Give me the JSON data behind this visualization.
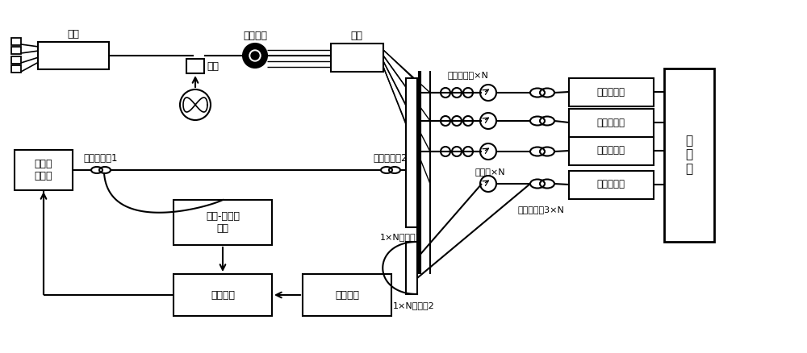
{
  "bg": "#ffffff",
  "lc": "#000000",
  "fig_w": 10.0,
  "fig_h": 4.38,
  "dpi": 100,
  "labels": {
    "output": "输出",
    "input": "输入",
    "multi_fiber": "多芯光纤",
    "vibration": "振动",
    "pm_coupler1": "保偏耦合器1",
    "pm_coupler2": "保偏耦合器2",
    "pm_coupler3": "保偏耦合器3×N",
    "tunable_laser": "可调谐\n激光器",
    "mz": "马赫-曾德干\n涉仪",
    "pll": "光锁相环",
    "sweep": "扫频信号",
    "cn1": "1×N耦合器1",
    "cn2": "1×N耦合器2",
    "circulator": "环形器×N",
    "pol_ctrl": "偏振控制器×N",
    "balanced_rx": "平衡接收机",
    "acq": "采\n集\n卡"
  }
}
